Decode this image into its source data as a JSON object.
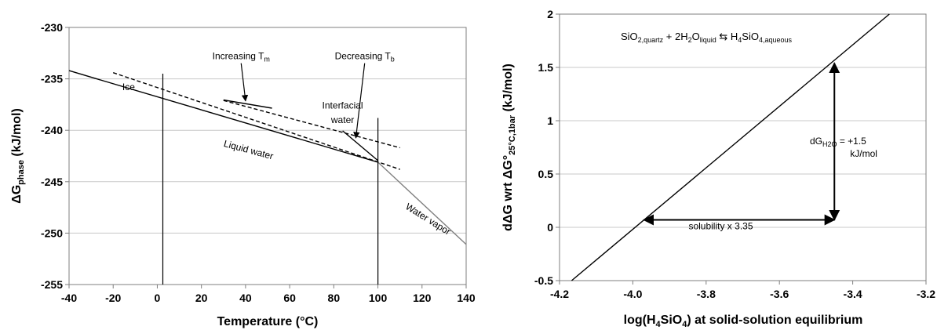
{
  "chart_data": [
    {
      "type": "line",
      "ylabel": "ΔG",
      "ylabel_sub": "phase",
      "ylabel_unit": " (kJ/mol)",
      "xlabel": "Temperature (°C)",
      "xlim": [
        -40,
        140
      ],
      "ylim": [
        -255,
        -230
      ],
      "xticks": [
        -40,
        -20,
        0,
        20,
        40,
        60,
        80,
        100,
        120,
        140
      ],
      "yticks": [
        -230,
        -235,
        -240,
        -245,
        -250,
        -255
      ],
      "grid": "horizontal",
      "series": [
        {
          "style": "solid",
          "color": "#000000",
          "x": [
            -40,
            100
          ],
          "y": [
            -234.2,
            -243.1
          ]
        },
        {
          "style": "dashed",
          "color": "#000000",
          "x": [
            -20,
            110
          ],
          "y": [
            -234.4,
            -243.8
          ]
        },
        {
          "style": "dashed",
          "color": "#000000",
          "x": [
            30,
            110
          ],
          "y": [
            -237.1,
            -241.7
          ]
        },
        {
          "style": "solid",
          "color": "#7f7f7f",
          "x": [
            100,
            140
          ],
          "y": [
            -243.1,
            -251.1
          ]
        },
        {
          "style": "solid",
          "color": "#000000",
          "x": [
            30,
            52
          ],
          "y": [
            -237.05,
            -237.85
          ]
        },
        {
          "style": "solid",
          "color": "#000000",
          "x": [
            84,
            100
          ],
          "y": [
            -240.05,
            -242.95
          ]
        },
        {
          "style": "vline",
          "color": "#000000",
          "x": [
            2.5,
            2.5
          ],
          "y": [
            -255,
            -234.5
          ]
        },
        {
          "style": "vline",
          "color": "#000000",
          "x": [
            100,
            100
          ],
          "y": [
            -255,
            -238.8
          ]
        }
      ],
      "annotations": [
        {
          "text": "Ice",
          "x": -13,
          "y": -236.1
        },
        {
          "text": "Liquid water",
          "x": 41,
          "y": -242.2,
          "rotate": 15
        },
        {
          "text": "Interfacial",
          "x": 84,
          "y": -237.9
        },
        {
          "text": "water",
          "x": 84,
          "y": -239.3
        },
        {
          "text": "Water vapor",
          "x": 122,
          "y": -248.9,
          "rotate": 32
        },
        {
          "text": "Increasing T",
          "sub": "m",
          "x": 38,
          "y": -233.1,
          "arrow_to": [
            40,
            -237.3
          ]
        },
        {
          "text": "Decreasing T",
          "sub": "b",
          "x": 94,
          "y": -233.1,
          "arrow_to": [
            90,
            -240.9
          ]
        }
      ]
    },
    {
      "type": "line",
      "ylabel_parts": [
        "dΔG wrt ΔG°",
        "25°C,1bar",
        " (kJ/mol)"
      ],
      "xlabel_parts": [
        "log(H",
        "4",
        "SiO",
        "4",
        ") at solid-solution equilibrium"
      ],
      "xlim": [
        -4.2,
        -3.2
      ],
      "ylim": [
        -0.5,
        2
      ],
      "xticks": [
        "-4.2",
        "-4.0",
        "-3.8",
        "-3.6",
        "-3.4",
        "-3.2"
      ],
      "yticks": [
        "2",
        "1.5",
        "1",
        "0.5",
        "0",
        "-0.5"
      ],
      "grid": "horizontal",
      "series": [
        {
          "style": "solid",
          "color": "#000000",
          "x": [
            -4.167,
            -3.3
          ],
          "y": [
            -0.5,
            2.0
          ]
        }
      ],
      "equation": {
        "parts": [
          {
            "t": "SiO"
          },
          {
            "t": "2,quartz",
            "sub": true
          },
          {
            "t": " + 2H"
          },
          {
            "t": "2",
            "sub": true
          },
          {
            "t": "O"
          },
          {
            "t": "liquid",
            "sub": true
          },
          {
            "t": " ⇆ H"
          },
          {
            "t": "4",
            "sub": true
          },
          {
            "t": "SiO"
          },
          {
            "t": "4,aqueous",
            "sub": true
          }
        ]
      },
      "arrows": [
        {
          "from": [
            -3.45,
            0.07
          ],
          "to": [
            -3.45,
            1.54
          ],
          "double": true
        },
        {
          "from": [
            -3.97,
            0.07
          ],
          "to": [
            -3.45,
            0.07
          ],
          "double": true
        }
      ],
      "annotations": [
        {
          "text": "solubility x 3.35",
          "x": -3.76,
          "y": -0.02
        },
        {
          "text": "dG",
          "sub": "H2O",
          "rest": " = +1.5",
          "x": -3.44,
          "y": 0.78
        },
        {
          "text": "kJ/mol",
          "x": -3.37,
          "y": 0.66
        }
      ]
    }
  ]
}
